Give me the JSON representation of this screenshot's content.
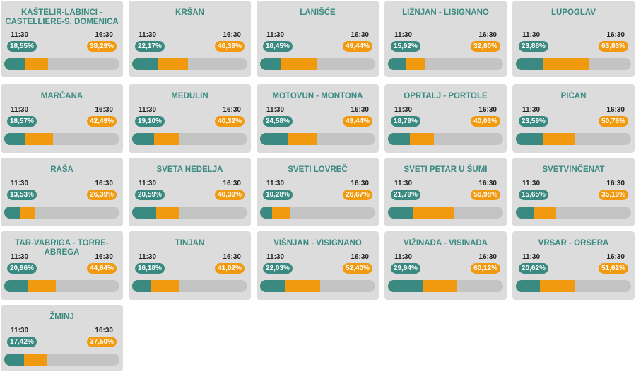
{
  "colors": {
    "teal": "#3a8a82",
    "orange": "#f29a0f",
    "card": "#dcdcdc",
    "bar_bg": "#c4c4c4",
    "title": "#3b8b82"
  },
  "time_labels": {
    "early": "11:30",
    "late": "16:30"
  },
  "municipalities": [
    {
      "name": "KAŠTELIR-LABINCI - CASTELLIERE-S. DOMENICA",
      "early": "18,55%",
      "late": "38,29%"
    },
    {
      "name": "KRŠAN",
      "early": "22,17%",
      "late": "48,39%"
    },
    {
      "name": "LANIŠĆE",
      "early": "18,45%",
      "late": "49,44%"
    },
    {
      "name": "LIŽNJAN - LISIGNANO",
      "early": "15,92%",
      "late": "32,80%"
    },
    {
      "name": "LUPOGLAV",
      "early": "23,88%",
      "late": "63,83%"
    },
    {
      "name": "MARČANA",
      "early": "18,57%",
      "late": "42,49%"
    },
    {
      "name": "MEDULIN",
      "early": "19,10%",
      "late": "40,32%"
    },
    {
      "name": "MOTOVUN - MONTONA",
      "early": "24,58%",
      "late": "49,44%"
    },
    {
      "name": "OPRTALJ - PORTOLE",
      "early": "18,79%",
      "late": "40,03%"
    },
    {
      "name": "PIĆAN",
      "early": "23,59%",
      "late": "50,76%"
    },
    {
      "name": "RAŠA",
      "early": "13,53%",
      "late": "26,39%"
    },
    {
      "name": "SVETA NEDELJA",
      "early": "20,59%",
      "late": "40,39%"
    },
    {
      "name": "SVETI LOVREČ",
      "early": "10,28%",
      "late": "26,67%"
    },
    {
      "name": "SVETI PETAR U ŠUMI",
      "early": "21,79%",
      "late": "56,98%"
    },
    {
      "name": "SVETVINČENAT",
      "early": "15,65%",
      "late": "35,19%"
    },
    {
      "name": "TAR-VABRIGA - TORRE-ABREGA",
      "early": "20,96%",
      "late": "44,64%"
    },
    {
      "name": "TINJAN",
      "early": "16,18%",
      "late": "41,02%"
    },
    {
      "name": "VIŠNJAN - VISIGNANO",
      "early": "22,03%",
      "late": "52,40%"
    },
    {
      "name": "VIŽINADA - VISINADA",
      "early": "29,94%",
      "late": "60,12%"
    },
    {
      "name": "VRSAR - ORSERA",
      "early": "20,62%",
      "late": "51,62%"
    },
    {
      "name": "ŽMINJ",
      "early": "17,42%",
      "late": "37,50%"
    }
  ]
}
